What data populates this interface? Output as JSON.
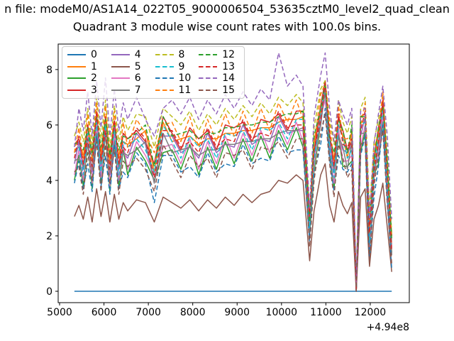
{
  "figure": {
    "suptitle": "n file: modeM0/AS1A14_022T05_9000006504_53635cztM0_level2_quad_clean",
    "title": "Quadrant 3 module wise count rates with 100.0s bins."
  },
  "axes": {
    "xticks": [
      5000,
      6000,
      7000,
      8000,
      9000,
      10000,
      11000,
      12000
    ],
    "yticks": [
      0,
      2,
      4,
      6,
      8
    ],
    "x_offset_label": "+4.94e8",
    "xlim": [
      4968,
      12880
    ],
    "ylim": [
      -0.41,
      8.92
    ],
    "grid": false,
    "legend_position": "upper left",
    "legend_columns": 4
  },
  "chart_data": {
    "type": "line",
    "title": "Quadrant 3 module wise count rates with 100.0s bins.",
    "xlabel": "",
    "ylabel": "",
    "x_offset": "+4.94e8",
    "x": [
      5334,
      5434,
      5534,
      5634,
      5734,
      5834,
      5934,
      6034,
      6134,
      6234,
      6334,
      6434,
      6534,
      6734,
      6934,
      7134,
      7334,
      7534,
      7734,
      7934,
      8134,
      8334,
      8534,
      8734,
      8934,
      9134,
      9334,
      9534,
      9734,
      9934,
      10134,
      10334,
      10484,
      10634,
      10734,
      10884,
      10984,
      11084,
      11184,
      11284,
      11384,
      11484,
      11584,
      11684,
      11784,
      11884,
      11984,
      12084,
      12184,
      12284,
      12384,
      12484
    ],
    "series": [
      {
        "name": "0",
        "color": "#1f77b4",
        "linestyle": "solid",
        "values": [
          0,
          0,
          0,
          0,
          0,
          0,
          0,
          0,
          0,
          0,
          0,
          0,
          0,
          0,
          0,
          0,
          0,
          0,
          0,
          0,
          0,
          0,
          0,
          0,
          0,
          0,
          0,
          0,
          0,
          0,
          0,
          0,
          0,
          0,
          0,
          0,
          0,
          0,
          0,
          0,
          0,
          0,
          0,
          0,
          0,
          0,
          0,
          0,
          0,
          0,
          0,
          0
        ]
      },
      {
        "name": "1",
        "color": "#ff7f0e",
        "linestyle": "solid",
        "values": [
          5.1,
          5.2,
          4.9,
          5.7,
          4.8,
          6.1,
          5.0,
          6.0,
          4.7,
          5.8,
          4.9,
          5.4,
          5.3,
          5.5,
          5.8,
          4.3,
          6.1,
          5.4,
          5.5,
          5.6,
          5.3,
          5.5,
          5.5,
          5.7,
          5.7,
          5.8,
          5.8,
          5.9,
          5.9,
          6.1,
          6.2,
          6.2,
          6.3,
          2.3,
          5.4,
          6.4,
          7.3,
          5.3,
          4.8,
          6.0,
          5.6,
          4.8,
          5.8,
          0.2,
          6.1,
          6.1,
          2.4,
          4.5,
          5.7,
          6.5,
          4.5,
          1.7
        ]
      },
      {
        "name": "2",
        "color": "#2ca02c",
        "linestyle": "solid",
        "values": [
          4.0,
          4.9,
          3.8,
          5.4,
          3.7,
          5.8,
          3.9,
          5.7,
          3.6,
          5.5,
          3.8,
          5.1,
          4.2,
          5.2,
          4.7,
          4.0,
          5.0,
          5.1,
          4.4,
          5.3,
          4.2,
          5.2,
          4.4,
          5.4,
          4.6,
          5.5,
          4.7,
          5.6,
          4.8,
          5.8,
          5.1,
          5.9,
          5.2,
          2.0,
          4.3,
          6.1,
          7.2,
          5.0,
          3.7,
          5.7,
          4.5,
          4.5,
          4.7,
          0.0,
          5.0,
          5.8,
          1.3,
          4.2,
          4.6,
          6.2,
          3.4,
          1.4
        ]
      },
      {
        "name": "3",
        "color": "#d62728",
        "linestyle": "solid",
        "values": [
          5.3,
          5.5,
          4.5,
          6.0,
          5.0,
          6.4,
          4.6,
          6.3,
          4.9,
          6.1,
          4.5,
          5.7,
          5.5,
          5.8,
          5.4,
          4.6,
          6.3,
          5.7,
          5.1,
          5.9,
          5.5,
          5.8,
          5.1,
          6.0,
          5.9,
          6.1,
          5.4,
          6.2,
          6.1,
          6.4,
          5.8,
          6.5,
          6.5,
          2.6,
          5.0,
          6.7,
          7.6,
          5.6,
          4.4,
          6.3,
          5.8,
          5.1,
          5.4,
          0.1,
          6.3,
          6.4,
          2.0,
          4.8,
          5.9,
          6.8,
          4.1,
          2.0
        ]
      },
      {
        "name": "4",
        "color": "#9467bd",
        "linestyle": "solid",
        "values": [
          4.6,
          5.4,
          4.4,
          5.3,
          4.3,
          6.3,
          4.5,
          5.6,
          4.2,
          6.0,
          4.4,
          5.0,
          4.8,
          5.7,
          5.3,
          3.9,
          5.6,
          5.6,
          5.0,
          5.2,
          4.8,
          5.7,
          5.0,
          5.3,
          5.2,
          6.0,
          5.3,
          5.5,
          5.4,
          6.3,
          5.7,
          5.8,
          5.8,
          2.5,
          4.9,
          6.0,
          7.3,
          5.5,
          4.3,
          5.6,
          5.1,
          5.0,
          5.3,
          0.0,
          5.6,
          6.3,
          1.9,
          4.1,
          5.2,
          6.7,
          4.0,
          1.3
        ]
      },
      {
        "name": "5",
        "color": "#8c564b",
        "linestyle": "solid",
        "values": [
          2.7,
          3.1,
          2.6,
          3.4,
          2.5,
          3.7,
          2.7,
          3.6,
          2.5,
          3.5,
          2.6,
          3.2,
          2.9,
          3.3,
          3.2,
          2.5,
          3.4,
          3.2,
          3.0,
          3.3,
          2.9,
          3.3,
          3.0,
          3.4,
          3.1,
          3.5,
          3.2,
          3.5,
          3.6,
          4.0,
          3.9,
          4.2,
          4.0,
          1.1,
          2.9,
          4.2,
          4.6,
          3.1,
          2.5,
          3.6,
          3.1,
          2.8,
          3.2,
          0.0,
          3.4,
          3.7,
          0.9,
          2.6,
          3.1,
          3.9,
          2.3,
          0.7
        ]
      },
      {
        "name": "6",
        "color": "#e377c2",
        "linestyle": "solid",
        "values": [
          4.2,
          5.1,
          4.0,
          5.6,
          3.9,
          6.0,
          4.1,
          5.9,
          3.8,
          5.7,
          4.0,
          5.3,
          4.4,
          5.4,
          4.9,
          4.2,
          5.2,
          5.3,
          4.6,
          5.5,
          4.4,
          5.4,
          4.6,
          5.6,
          4.8,
          5.7,
          4.9,
          5.8,
          5.0,
          6.0,
          5.3,
          6.1,
          5.4,
          2.2,
          4.5,
          6.3,
          6.9,
          5.2,
          3.9,
          5.9,
          4.7,
          4.7,
          4.9,
          0.1,
          5.2,
          6.0,
          1.5,
          4.4,
          4.8,
          6.4,
          3.6,
          1.6
        ]
      },
      {
        "name": "7",
        "color": "#7f7f7f",
        "linestyle": "solid",
        "values": [
          4.7,
          4.8,
          4.5,
          5.3,
          4.4,
          5.7,
          4.6,
          5.6,
          4.3,
          5.4,
          4.5,
          5.0,
          4.9,
          5.1,
          5.4,
          3.9,
          5.7,
          5.0,
          5.1,
          5.2,
          4.9,
          5.1,
          5.1,
          5.3,
          5.3,
          5.4,
          5.4,
          5.5,
          5.5,
          5.7,
          5.8,
          5.8,
          5.9,
          1.9,
          5.0,
          6.0,
          7.4,
          4.9,
          4.4,
          5.6,
          5.2,
          4.4,
          5.4,
          0.0,
          5.7,
          5.7,
          2.0,
          4.1,
          5.3,
          6.1,
          4.1,
          1.3
        ]
      },
      {
        "name": "8",
        "color": "#bcbd22",
        "linestyle": "dashed",
        "values": [
          5.6,
          6.1,
          5.4,
          6.6,
          5.3,
          7.0,
          5.5,
          6.9,
          5.2,
          6.7,
          5.4,
          6.3,
          5.8,
          6.4,
          6.3,
          5.2,
          6.6,
          6.3,
          6.0,
          6.5,
          5.8,
          6.4,
          6.0,
          6.6,
          6.2,
          6.7,
          6.3,
          6.8,
          6.4,
          7.0,
          6.7,
          7.1,
          6.8,
          2.8,
          5.9,
          7.3,
          7.6,
          6.2,
          5.3,
          6.9,
          6.1,
          5.7,
          6.3,
          0.2,
          6.6,
          7.0,
          2.9,
          5.4,
          6.2,
          7.0,
          5.0,
          2.1
        ]
      },
      {
        "name": "9",
        "color": "#17becf",
        "linestyle": "dashed",
        "values": [
          5.0,
          5.2,
          4.2,
          5.7,
          4.7,
          6.1,
          4.3,
          6.0,
          4.6,
          5.8,
          4.2,
          5.4,
          5.2,
          5.5,
          5.1,
          4.3,
          6.0,
          5.4,
          4.8,
          5.6,
          5.2,
          5.5,
          4.8,
          5.7,
          5.6,
          5.8,
          5.1,
          5.9,
          5.8,
          6.1,
          5.5,
          6.2,
          6.2,
          2.3,
          4.7,
          6.4,
          7.4,
          5.3,
          4.1,
          6.0,
          5.5,
          4.8,
          5.1,
          0.2,
          6.0,
          6.1,
          1.7,
          4.5,
          5.6,
          6.5,
          3.8,
          1.7
        ]
      },
      {
        "name": "10",
        "color": "#1f77b4",
        "linestyle": "dashed",
        "values": [
          3.9,
          4.7,
          3.7,
          4.6,
          3.6,
          5.6,
          3.8,
          4.9,
          3.5,
          5.3,
          3.7,
          4.3,
          4.1,
          5.0,
          4.6,
          3.2,
          4.9,
          4.9,
          4.3,
          4.5,
          4.1,
          5.0,
          4.3,
          4.6,
          4.5,
          5.3,
          4.6,
          4.8,
          4.7,
          5.6,
          5.0,
          5.1,
          5.1,
          1.8,
          4.2,
          5.3,
          6.6,
          4.8,
          3.6,
          4.9,
          4.4,
          4.3,
          4.6,
          0.0,
          4.9,
          5.6,
          1.2,
          3.4,
          4.5,
          6.0,
          3.3,
          0.8
        ]
      },
      {
        "name": "11",
        "color": "#ff7f0e",
        "linestyle": "dashed",
        "values": [
          5.0,
          5.9,
          4.8,
          6.4,
          4.7,
          6.8,
          4.9,
          6.7,
          4.6,
          6.5,
          4.8,
          6.1,
          5.2,
          6.2,
          5.7,
          5.0,
          6.0,
          6.1,
          5.4,
          6.3,
          5.2,
          6.2,
          5.4,
          6.4,
          5.6,
          6.5,
          5.7,
          6.6,
          5.8,
          6.8,
          6.1,
          6.9,
          6.2,
          2.8,
          5.3,
          7.1,
          7.5,
          6.0,
          4.7,
          6.7,
          5.5,
          5.5,
          5.7,
          0.2,
          6.0,
          6.8,
          2.3,
          5.2,
          5.6,
          7.2,
          4.4,
          2.0
        ]
      },
      {
        "name": "12",
        "color": "#2ca02c",
        "linestyle": "dashed",
        "values": [
          5.3,
          5.4,
          5.1,
          5.9,
          5.0,
          6.3,
          5.2,
          6.2,
          4.9,
          6.0,
          5.1,
          5.6,
          5.5,
          5.7,
          6.0,
          4.5,
          6.3,
          5.6,
          5.7,
          5.8,
          5.5,
          5.7,
          5.7,
          5.9,
          5.9,
          6.0,
          6.0,
          6.1,
          6.1,
          6.3,
          6.4,
          6.4,
          6.5,
          2.5,
          5.6,
          6.6,
          7.5,
          5.5,
          5.0,
          6.2,
          5.8,
          5.0,
          6.0,
          0.2,
          6.3,
          6.3,
          2.6,
          4.7,
          5.9,
          6.7,
          4.7,
          1.9
        ]
      },
      {
        "name": "13",
        "color": "#d62728",
        "linestyle": "dashed",
        "values": [
          4.8,
          5.6,
          4.6,
          5.5,
          4.5,
          6.5,
          4.7,
          5.8,
          4.4,
          6.2,
          4.6,
          5.2,
          5.0,
          5.9,
          5.5,
          4.1,
          5.8,
          5.8,
          5.2,
          5.4,
          5.0,
          5.9,
          5.2,
          5.5,
          5.4,
          6.2,
          5.5,
          5.7,
          5.6,
          6.5,
          5.9,
          6.0,
          6.0,
          2.7,
          5.1,
          6.2,
          7.5,
          5.7,
          4.5,
          6.4,
          5.3,
          5.2,
          5.5,
          0.0,
          5.8,
          6.5,
          2.1,
          4.3,
          5.4,
          6.9,
          4.2,
          1.5
        ]
      },
      {
        "name": "14",
        "color": "#9467bd",
        "linestyle": "dashed",
        "values": [
          5.2,
          6.6,
          5.8,
          7.2,
          5.6,
          7.6,
          5.9,
          7.7,
          5.6,
          7.3,
          5.8,
          6.8,
          6.2,
          7.0,
          6.2,
          5.6,
          6.6,
          6.9,
          6.4,
          7.0,
          6.2,
          6.9,
          6.4,
          7.1,
          6.6,
          7.2,
          6.7,
          7.3,
          6.9,
          8.6,
          7.4,
          7.8,
          7.4,
          3.0,
          6.3,
          7.8,
          8.6,
          6.6,
          5.4,
          6.9,
          6.4,
          6.0,
          6.6,
          0.3,
          6.5,
          6.6,
          2.6,
          5.3,
          6.4,
          7.4,
          5.6,
          2.6
        ]
      },
      {
        "name": "15",
        "color": "#8c564b",
        "linestyle": "dashed",
        "values": [
          4.3,
          4.5,
          3.5,
          5.0,
          4.0,
          5.4,
          3.6,
          5.3,
          3.9,
          5.1,
          3.5,
          4.7,
          4.5,
          4.8,
          4.4,
          3.6,
          5.3,
          4.7,
          4.1,
          4.9,
          4.5,
          4.8,
          4.1,
          5.0,
          4.9,
          5.1,
          4.4,
          5.2,
          5.1,
          5.4,
          4.8,
          5.5,
          5.5,
          1.6,
          4.0,
          5.7,
          6.4,
          4.6,
          3.4,
          5.3,
          4.8,
          4.1,
          4.4,
          0.0,
          5.3,
          5.4,
          1.0,
          3.8,
          4.9,
          5.8,
          3.1,
          1.0
        ]
      }
    ]
  }
}
